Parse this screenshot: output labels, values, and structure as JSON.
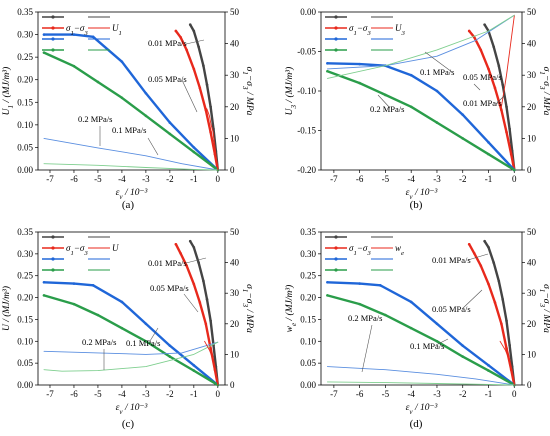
{
  "chart_data": [
    {
      "type": "line",
      "panel_label": "(a)",
      "xlabel": "ε_v / 10⁻³",
      "ylabel_left": "U_1 / (MJ/m³)",
      "ylabel_right": "σ_1−σ_3 / MPa",
      "xlim": [
        -7.5,
        0.3
      ],
      "ylim_left": [
        0,
        0.35
      ],
      "ylim_right": [
        0,
        50
      ],
      "xticks": [
        -7,
        -6,
        -5,
        -4,
        -3,
        -2,
        -1,
        0
      ],
      "xtick_labels": [
        "-7",
        "-6",
        "-5",
        "-4",
        "-3",
        "-2",
        "-1",
        "0"
      ],
      "yticks_left": [
        0,
        0.05,
        0.1,
        0.15,
        0.2,
        0.25,
        0.3,
        0.35
      ],
      "ytick_labels_left": [
        "0.00",
        "0.05",
        "0.10",
        "0.15",
        "0.20",
        "0.25",
        "0.30",
        "0.35"
      ],
      "yticks_right": [
        0,
        10,
        20,
        30,
        40,
        50
      ],
      "ytick_labels_right": [
        "0",
        "10",
        "20",
        "30",
        "40",
        "50"
      ],
      "legend": {
        "placement": "top-left",
        "entries": [
          "σ_1−σ_3",
          "U_1"
        ]
      },
      "annotations": [
        "0.01 MPa/s",
        "0.05 MPa/s",
        "0.2 MPa/s",
        "0.1 MPa/s"
      ],
      "series": [
        {
          "rate": "0.01 MPa/s",
          "quantity": "stress",
          "axis": "right",
          "color": "#444444",
          "x": [
            -1.15,
            -1.0,
            -0.8,
            -0.6,
            -0.45,
            -0.3,
            -0.18,
            -0.08,
            0
          ],
          "y": [
            46,
            44,
            39,
            33,
            27,
            20,
            13,
            6,
            0
          ]
        },
        {
          "rate": "0.05 MPa/s",
          "quantity": "stress",
          "axis": "right",
          "color": "#e8291c",
          "x": [
            -1.75,
            -1.55,
            -1.3,
            -1.0,
            -0.75,
            -0.5,
            -0.3,
            -0.12,
            0
          ],
          "y": [
            44,
            42,
            38,
            32,
            26,
            19,
            12,
            5,
            0
          ]
        },
        {
          "rate": "0.1 MPa/s",
          "quantity": "energy",
          "axis": "left",
          "color": "#1f66d8",
          "x": [
            -7.25,
            -6,
            -5.2,
            -4,
            -3,
            -2,
            -1,
            0
          ],
          "y": [
            0.3,
            0.3,
            0.295,
            0.24,
            0.17,
            0.105,
            0.05,
            0
          ]
        },
        {
          "rate": "0.2 MPa/s",
          "quantity": "energy",
          "axis": "left",
          "color": "#2a9d4a",
          "x": [
            -7.25,
            -6,
            -5,
            -4,
            -3,
            -2,
            -1,
            0
          ],
          "y": [
            0.26,
            0.23,
            0.195,
            0.16,
            0.12,
            0.08,
            0.04,
            0
          ]
        },
        {
          "rate": "0.1 MPa/s",
          "quantity": "stress",
          "axis": "right",
          "color": "#5b8fe0",
          "x": [
            -7.25,
            -5,
            -3,
            -1.5,
            0
          ],
          "y": [
            10,
            7,
            4.5,
            2,
            0
          ]
        },
        {
          "rate": "0.2 MPa/s",
          "quantity": "stress",
          "axis": "right",
          "color": "#7fcf8f",
          "x": [
            -7.25,
            -5,
            -3,
            -1,
            0
          ],
          "y": [
            2,
            1.5,
            0.8,
            0.2,
            0
          ]
        },
        {
          "rate": "0.05 MPa/s",
          "quantity": "energy",
          "axis": "left",
          "color": "#e8291c",
          "x": [
            -0.55,
            -0.45,
            -0.35,
            -0.28,
            -0.2,
            -0.15,
            -0.1,
            -0.05,
            0
          ],
          "y": [
            0.14,
            0.135,
            0.12,
            0.1,
            0.085,
            0.065,
            0.045,
            0.02,
            0
          ]
        }
      ]
    },
    {
      "type": "line",
      "panel_label": "(b)",
      "xlabel": "ε_v / 10⁻³",
      "ylabel_left": "U_3 / (MJ/m³)",
      "ylabel_right": "σ_1−σ_3 / MPa",
      "xlim": [
        -7.5,
        0.3
      ],
      "ylim_left": [
        -0.2,
        0
      ],
      "ylim_right": [
        0,
        50
      ],
      "xticks": [
        -7,
        -6,
        -5,
        -4,
        -3,
        -2,
        -1,
        0
      ],
      "xtick_labels": [
        "-7",
        "-6",
        "-5",
        "-4",
        "-3",
        "-2",
        "-1",
        "0"
      ],
      "yticks_left": [
        -0.2,
        -0.15,
        -0.1,
        -0.05,
        0
      ],
      "ytick_labels_left": [
        "-0.20",
        "-0.15",
        "-0.10",
        "-0.05",
        "0.00"
      ],
      "yticks_right": [
        0,
        10,
        20,
        30,
        40,
        50
      ],
      "ytick_labels_right": [
        "0",
        "10",
        "20",
        "30",
        "40",
        "50"
      ],
      "legend": {
        "placement": "top-left",
        "entries": [
          "σ_1−σ_3",
          "U_3"
        ]
      },
      "annotations": [
        "0.1 MPa/s",
        "0.05 MPa/s",
        "0.01 MPa/s",
        "0.2 MPa/s"
      ],
      "series": [
        {
          "rate": "0.01 MPa/s",
          "quantity": "stress",
          "axis": "right",
          "color": "#444444",
          "x": [
            -1.15,
            -1.0,
            -0.8,
            -0.6,
            -0.45,
            -0.3,
            -0.18,
            -0.08,
            0
          ],
          "y": [
            46,
            44,
            39,
            33,
            27,
            20,
            13,
            6,
            0
          ]
        },
        {
          "rate": "0.05 MPa/s",
          "quantity": "stress",
          "axis": "right",
          "color": "#e8291c",
          "x": [
            -1.75,
            -1.55,
            -1.3,
            -1.0,
            -0.75,
            -0.5,
            -0.3,
            -0.12,
            0
          ],
          "y": [
            44,
            42,
            38,
            32,
            26,
            19,
            12,
            5,
            0
          ]
        },
        {
          "rate": "0.1 MPa/s",
          "quantity": "energy",
          "axis": "left",
          "color": "#1f66d8",
          "x": [
            -7.25,
            -6,
            -5,
            -4,
            -3,
            -2,
            -1,
            0
          ],
          "y": [
            -0.065,
            -0.066,
            -0.068,
            -0.08,
            -0.1,
            -0.13,
            -0.165,
            -0.2
          ]
        },
        {
          "rate": "0.2 MPa/s",
          "quantity": "energy",
          "axis": "left",
          "color": "#2a9d4a",
          "x": [
            -7.25,
            -6,
            -5,
            -4,
            -3,
            -2,
            -1,
            0
          ],
          "y": [
            -0.075,
            -0.09,
            -0.105,
            -0.12,
            -0.14,
            -0.16,
            -0.18,
            -0.2
          ]
        },
        {
          "rate": "0.1 MPa/s",
          "quantity": "stress",
          "axis": "right",
          "color": "#5b8fe0",
          "x": [
            -7.25,
            -5,
            -3,
            -1.5,
            0
          ],
          "y": [
            32,
            33,
            36,
            41,
            49
          ]
        },
        {
          "rate": "0.2 MPa/s",
          "quantity": "stress",
          "axis": "right",
          "color": "#7fcf8f",
          "x": [
            -7.25,
            -5,
            -3,
            -1,
            0
          ],
          "y": [
            29,
            33,
            38,
            44,
            49
          ]
        },
        {
          "rate": "0.05 MPa/s",
          "quantity": "energy",
          "axis": "left",
          "color": "#e8291c",
          "x": [
            -0.5,
            -0.4,
            -0.3,
            -0.2,
            -0.1,
            0
          ],
          "y": [
            -0.12,
            -0.1,
            -0.08,
            -0.055,
            -0.03,
            -0.005
          ]
        }
      ]
    },
    {
      "type": "line",
      "panel_label": "(c)",
      "xlabel": "ε_v / 10⁻³",
      "ylabel_left": "U / (MJ/m³)",
      "ylabel_right": "σ_1−σ_3 / MPa",
      "xlim": [
        -7.5,
        0.3
      ],
      "ylim_left": [
        0,
        0.35
      ],
      "ylim_right": [
        0,
        50
      ],
      "xticks": [
        -7,
        -6,
        -5,
        -4,
        -3,
        -2,
        -1,
        0
      ],
      "xtick_labels": [
        "-7",
        "-6",
        "-5",
        "-4",
        "-3",
        "-2",
        "-1",
        "0"
      ],
      "yticks_left": [
        0,
        0.05,
        0.1,
        0.15,
        0.2,
        0.25,
        0.3,
        0.35
      ],
      "ytick_labels_left": [
        "0.00",
        "0.05",
        "0.10",
        "0.15",
        "0.20",
        "0.25",
        "0.30",
        "0.35"
      ],
      "yticks_right": [
        0,
        10,
        20,
        30,
        40,
        50
      ],
      "ytick_labels_right": [
        "0",
        "10",
        "20",
        "30",
        "40",
        "50"
      ],
      "legend": {
        "placement": "top-left",
        "entries": [
          "σ_1−σ_3",
          "U"
        ]
      },
      "annotations": [
        "0.01 MPa/s",
        "0.05 MPa/s",
        "0.2 MPa/s",
        "0.1 MPa/s"
      ],
      "series": [
        {
          "rate": "0.01 MPa/s",
          "quantity": "stress",
          "axis": "right",
          "color": "#444444",
          "x": [
            -1.15,
            -1.0,
            -0.8,
            -0.6,
            -0.45,
            -0.3,
            -0.18,
            -0.08,
            0
          ],
          "y": [
            47,
            45,
            40,
            34,
            28,
            21,
            13,
            6,
            0
          ]
        },
        {
          "rate": "0.05 MPa/s",
          "quantity": "stress",
          "axis": "right",
          "color": "#e8291c",
          "x": [
            -1.75,
            -1.55,
            -1.3,
            -1.0,
            -0.75,
            -0.5,
            -0.3,
            -0.12,
            0
          ],
          "y": [
            46,
            43,
            39,
            33,
            27,
            20,
            12,
            5,
            0
          ]
        },
        {
          "rate": "0.1 MPa/s",
          "quantity": "energy",
          "axis": "left",
          "color": "#1f66d8",
          "x": [
            -7.25,
            -6,
            -5.2,
            -4,
            -3,
            -2,
            -1,
            0
          ],
          "y": [
            0.235,
            0.232,
            0.228,
            0.19,
            0.14,
            0.09,
            0.045,
            0
          ]
        },
        {
          "rate": "0.2 MPa/s",
          "quantity": "energy",
          "axis": "left",
          "color": "#2a9d4a",
          "x": [
            -7.25,
            -6,
            -5,
            -4,
            -3,
            -2,
            -1,
            0
          ],
          "y": [
            0.205,
            0.185,
            0.16,
            0.13,
            0.1,
            0.065,
            0.033,
            0
          ]
        },
        {
          "rate": "0.1 MPa/s",
          "quantity": "stress",
          "axis": "right",
          "color": "#5b8fe0",
          "x": [
            -7.25,
            -5,
            -3,
            -1.5,
            0
          ],
          "y": [
            11,
            10.5,
            10,
            10.5,
            14
          ]
        },
        {
          "rate": "0.2 MPa/s",
          "quantity": "stress",
          "axis": "right",
          "color": "#7fcf8f",
          "x": [
            -7.25,
            -6.5,
            -5,
            -3,
            -1,
            0
          ],
          "y": [
            5,
            4.5,
            4.7,
            6,
            10,
            14
          ]
        },
        {
          "rate": "0.05 MPa/s",
          "quantity": "energy",
          "axis": "left",
          "color": "#e8291c",
          "x": [
            -0.55,
            -0.45,
            -0.35,
            -0.28,
            -0.2,
            -0.15,
            -0.1,
            -0.05,
            0
          ],
          "y": [
            0.1,
            0.09,
            0.08,
            0.07,
            0.06,
            0.045,
            0.03,
            0.015,
            0
          ]
        }
      ]
    },
    {
      "type": "line",
      "panel_label": "(d)",
      "xlabel": "ε_v / 10⁻³",
      "ylabel_left": "w_e / (MJ/m³)",
      "ylabel_right": "σ_1−σ_3 / MPa",
      "xlim": [
        -7.5,
        0.3
      ],
      "ylim_left": [
        0,
        0.35
      ],
      "ylim_right": [
        0,
        50
      ],
      "xticks": [
        -7,
        -6,
        -5,
        -4,
        -3,
        -2,
        -1,
        0
      ],
      "xtick_labels": [
        "-7",
        "-6",
        "-5",
        "-4",
        "-3",
        "-2",
        "-1",
        "0"
      ],
      "yticks_left": [
        0,
        0.05,
        0.1,
        0.15,
        0.2,
        0.25,
        0.3,
        0.35
      ],
      "ytick_labels_left": [
        "0.00",
        "0.05",
        "0.10",
        "0.15",
        "0.20",
        "0.25",
        "0.30",
        "0.35"
      ],
      "yticks_right": [
        0,
        10,
        20,
        30,
        40,
        50
      ],
      "ytick_labels_right": [
        "0",
        "10",
        "20",
        "30",
        "40",
        "50"
      ],
      "legend": {
        "placement": "top-left",
        "entries": [
          "σ_1−σ_3",
          "w_e"
        ]
      },
      "annotations": [
        "0.01 MPa/s",
        "0.05 MPa/s",
        "0.2 MPa/s",
        "0.1 MPa/s"
      ],
      "series": [
        {
          "rate": "0.01 MPa/s",
          "quantity": "stress",
          "axis": "right",
          "color": "#444444",
          "x": [
            -1.15,
            -1.0,
            -0.8,
            -0.6,
            -0.45,
            -0.3,
            -0.18,
            -0.08,
            0
          ],
          "y": [
            47,
            45,
            40,
            34,
            28,
            21,
            13,
            6,
            0
          ]
        },
        {
          "rate": "0.05 MPa/s",
          "quantity": "stress",
          "axis": "right",
          "color": "#e8291c",
          "x": [
            -1.75,
            -1.55,
            -1.3,
            -1.0,
            -0.75,
            -0.5,
            -0.3,
            -0.12,
            0
          ],
          "y": [
            46,
            43,
            39,
            33,
            27,
            20,
            12,
            5,
            0
          ]
        },
        {
          "rate": "0.1 MPa/s",
          "quantity": "energy",
          "axis": "left",
          "color": "#1f66d8",
          "x": [
            -7.25,
            -6,
            -5.2,
            -4,
            -3,
            -2,
            -1,
            0
          ],
          "y": [
            0.235,
            0.232,
            0.228,
            0.19,
            0.14,
            0.09,
            0.045,
            0
          ]
        },
        {
          "rate": "0.2 MPa/s",
          "quantity": "energy",
          "axis": "left",
          "color": "#2a9d4a",
          "x": [
            -7.25,
            -6,
            -5,
            -4,
            -3,
            -2,
            -1,
            0
          ],
          "y": [
            0.205,
            0.185,
            0.16,
            0.13,
            0.1,
            0.065,
            0.033,
            0
          ]
        },
        {
          "rate": "0.1 MPa/s",
          "quantity": "stress",
          "axis": "right",
          "color": "#5b8fe0",
          "x": [
            -7.25,
            -5,
            -3,
            -1.5,
            0
          ],
          "y": [
            6,
            5,
            3.5,
            2,
            0
          ]
        },
        {
          "rate": "0.2 MPa/s",
          "quantity": "stress",
          "axis": "right",
          "color": "#7fcf8f",
          "x": [
            -7.25,
            -5,
            -3,
            -1,
            0
          ],
          "y": [
            1,
            0.8,
            0.5,
            0.2,
            0
          ]
        },
        {
          "rate": "0.05 MPa/s",
          "quantity": "energy",
          "axis": "left",
          "color": "#e8291c",
          "x": [
            -0.55,
            -0.45,
            -0.35,
            -0.28,
            -0.2,
            -0.15,
            -0.1,
            -0.05,
            0
          ],
          "y": [
            0.1,
            0.09,
            0.08,
            0.07,
            0.06,
            0.045,
            0.03,
            0.015,
            0
          ]
        }
      ]
    }
  ]
}
